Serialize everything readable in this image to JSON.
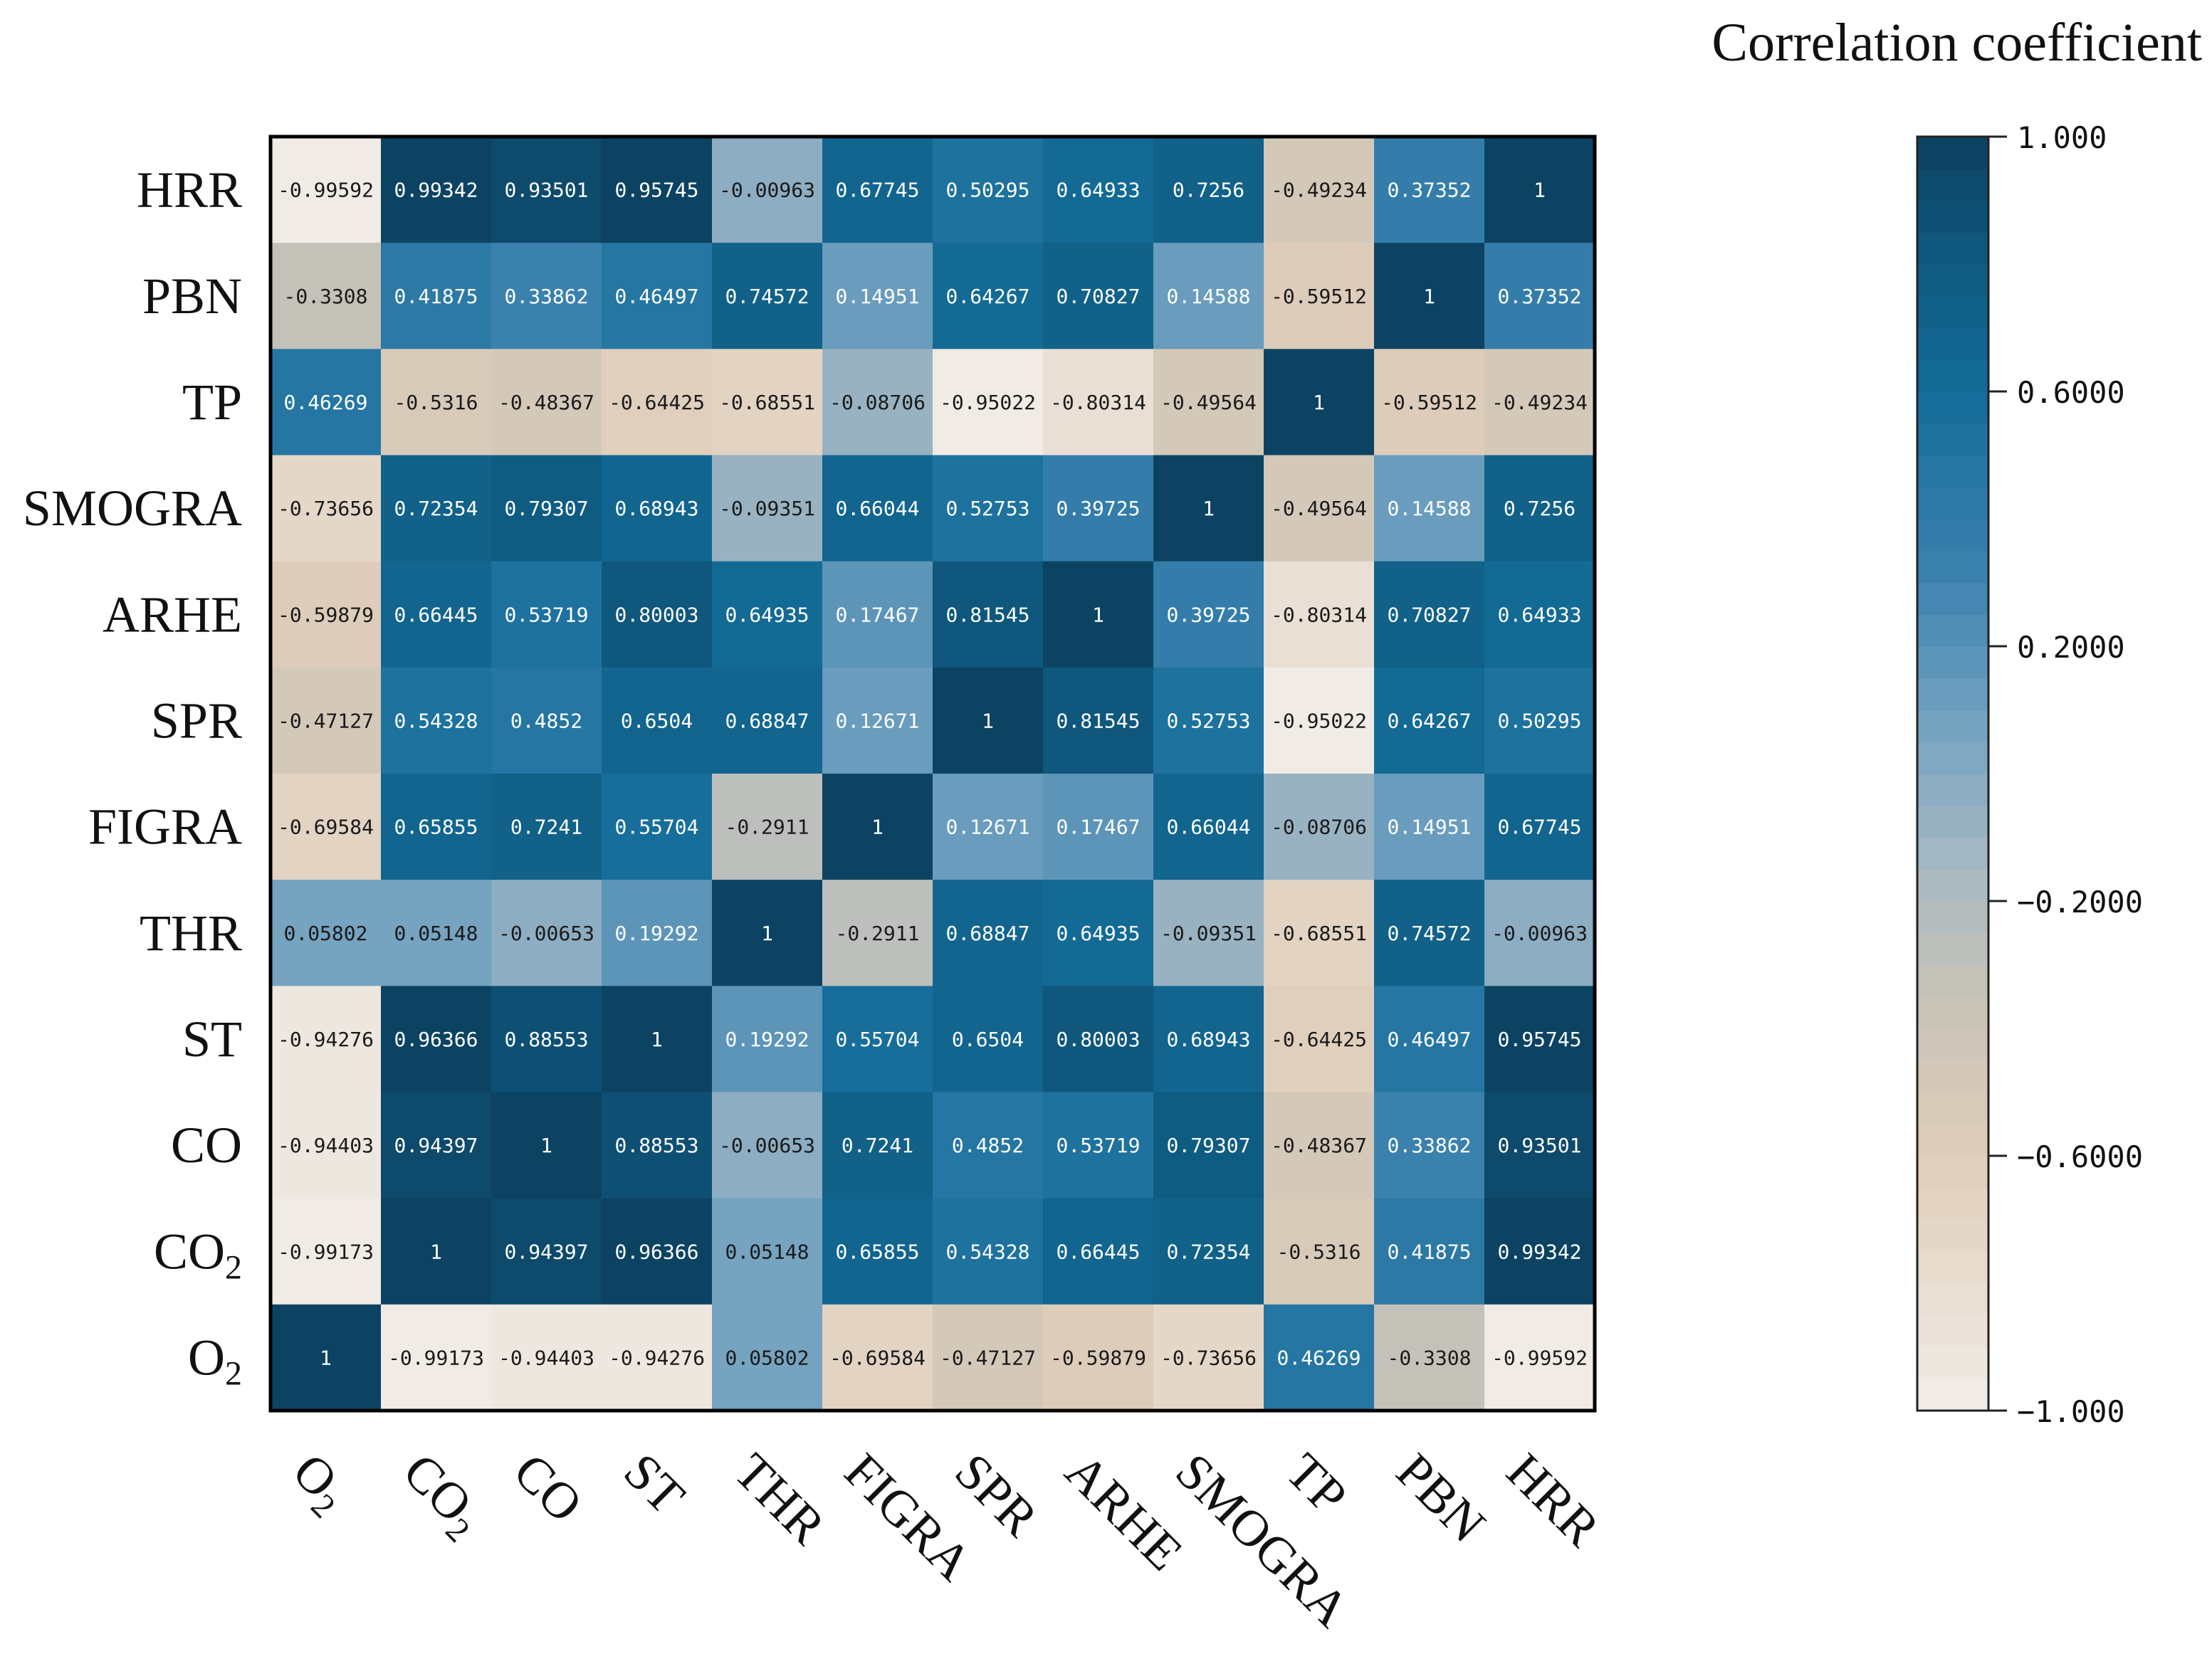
{
  "chart_data": {
    "type": "heatmap",
    "title": "",
    "colorbar_title": "Correlation coefficient",
    "row_labels_top_to_bottom": [
      {
        "base": "HRR",
        "sub": ""
      },
      {
        "base": "PBN",
        "sub": ""
      },
      {
        "base": "TP",
        "sub": ""
      },
      {
        "base": "SMOGRA",
        "sub": ""
      },
      {
        "base": "ARHE",
        "sub": ""
      },
      {
        "base": "SPR",
        "sub": ""
      },
      {
        "base": "FIGRA",
        "sub": ""
      },
      {
        "base": "THR",
        "sub": ""
      },
      {
        "base": "ST",
        "sub": ""
      },
      {
        "base": "CO",
        "sub": ""
      },
      {
        "base": "CO",
        "sub": "2"
      },
      {
        "base": "O",
        "sub": "2"
      }
    ],
    "column_labels_left_to_right": [
      {
        "base": "O",
        "sub": "2"
      },
      {
        "base": "CO",
        "sub": "2"
      },
      {
        "base": "CO",
        "sub": ""
      },
      {
        "base": "ST",
        "sub": ""
      },
      {
        "base": "THR",
        "sub": ""
      },
      {
        "base": "FIGRA",
        "sub": ""
      },
      {
        "base": "SPR",
        "sub": ""
      },
      {
        "base": "ARHE",
        "sub": ""
      },
      {
        "base": "SMOGRA",
        "sub": ""
      },
      {
        "base": "TP",
        "sub": ""
      },
      {
        "base": "PBN",
        "sub": ""
      },
      {
        "base": "HRR",
        "sub": ""
      }
    ],
    "values": [
      [
        "-0.99592",
        "0.99342",
        "0.93501",
        "0.95745",
        "-0.00963",
        "0.67745",
        "0.50295",
        "0.64933",
        "0.7256",
        "-0.49234",
        "0.37352",
        "1"
      ],
      [
        "-0.3308",
        "0.41875",
        "0.33862",
        "0.46497",
        "0.74572",
        "0.14951",
        "0.64267",
        "0.70827",
        "0.14588",
        "-0.59512",
        "1",
        "0.37352"
      ],
      [
        "0.46269",
        "-0.5316",
        "-0.48367",
        "-0.64425",
        "-0.68551",
        "-0.08706",
        "-0.95022",
        "-0.80314",
        "-0.49564",
        "1",
        "-0.59512",
        "-0.49234"
      ],
      [
        "-0.73656",
        "0.72354",
        "0.79307",
        "0.68943",
        "-0.09351",
        "0.66044",
        "0.52753",
        "0.39725",
        "1",
        "-0.49564",
        "0.14588",
        "0.7256"
      ],
      [
        "-0.59879",
        "0.66445",
        "0.53719",
        "0.80003",
        "0.64935",
        "0.17467",
        "0.81545",
        "1",
        "0.39725",
        "-0.80314",
        "0.70827",
        "0.64933"
      ],
      [
        "-0.47127",
        "0.54328",
        "0.4852",
        "0.6504",
        "0.68847",
        "0.12671",
        "1",
        "0.81545",
        "0.52753",
        "-0.95022",
        "0.64267",
        "0.50295"
      ],
      [
        "-0.69584",
        "0.65855",
        "0.7241",
        "0.55704",
        "-0.2911",
        "1",
        "0.12671",
        "0.17467",
        "0.66044",
        "-0.08706",
        "0.14951",
        "0.67745"
      ],
      [
        "0.05802",
        "0.05148",
        "-0.00653",
        "0.19292",
        "1",
        "-0.2911",
        "0.68847",
        "0.64935",
        "-0.09351",
        "-0.68551",
        "0.74572",
        "-0.00963"
      ],
      [
        "-0.94276",
        "0.96366",
        "0.88553",
        "1",
        "0.19292",
        "0.55704",
        "0.6504",
        "0.80003",
        "0.68943",
        "-0.64425",
        "0.46497",
        "0.95745"
      ],
      [
        "-0.94403",
        "0.94397",
        "1",
        "0.88553",
        "-0.00653",
        "0.7241",
        "0.4852",
        "0.53719",
        "0.79307",
        "-0.48367",
        "0.33862",
        "0.93501"
      ],
      [
        "-0.99173",
        "1",
        "0.94397",
        "0.96366",
        "0.05148",
        "0.65855",
        "0.54328",
        "0.66445",
        "0.72354",
        "-0.5316",
        "0.41875",
        "0.99342"
      ],
      [
        "1",
        "-0.99173",
        "-0.94403",
        "-0.94276",
        "0.05802",
        "-0.69584",
        "-0.47127",
        "-0.59879",
        "-0.73656",
        "0.46269",
        "-0.3308",
        "-0.99592"
      ]
    ],
    "value_range": [
      -1,
      1
    ],
    "colorbar_ticks": [
      {
        "value": 1,
        "label": "1.000"
      },
      {
        "value": 0.6,
        "label": "0.6000"
      },
      {
        "value": 0.2,
        "label": "0.2000"
      },
      {
        "value": -0.2,
        "label": "−0.2000"
      },
      {
        "value": -0.6,
        "label": "−0.6000"
      },
      {
        "value": -1,
        "label": "−1.000"
      }
    ],
    "colorbar_levels": 40,
    "colormap_stops": [
      {
        "v": -1.0,
        "color": "#F1EDE8"
      },
      {
        "v": -0.6,
        "color": "#DFCDBA"
      },
      {
        "v": -0.35,
        "color": "#C8C2B8"
      },
      {
        "v": -0.15,
        "color": "#A9B9C2"
      },
      {
        "v": 0.05,
        "color": "#7BA6C2"
      },
      {
        "v": 0.3,
        "color": "#3F83B0"
      },
      {
        "v": 0.6,
        "color": "#136C98"
      },
      {
        "v": 0.8,
        "color": "#0F5A80"
      },
      {
        "v": 1.0,
        "color": "#0C405F"
      }
    ],
    "grid": false,
    "legend_position": "right"
  }
}
